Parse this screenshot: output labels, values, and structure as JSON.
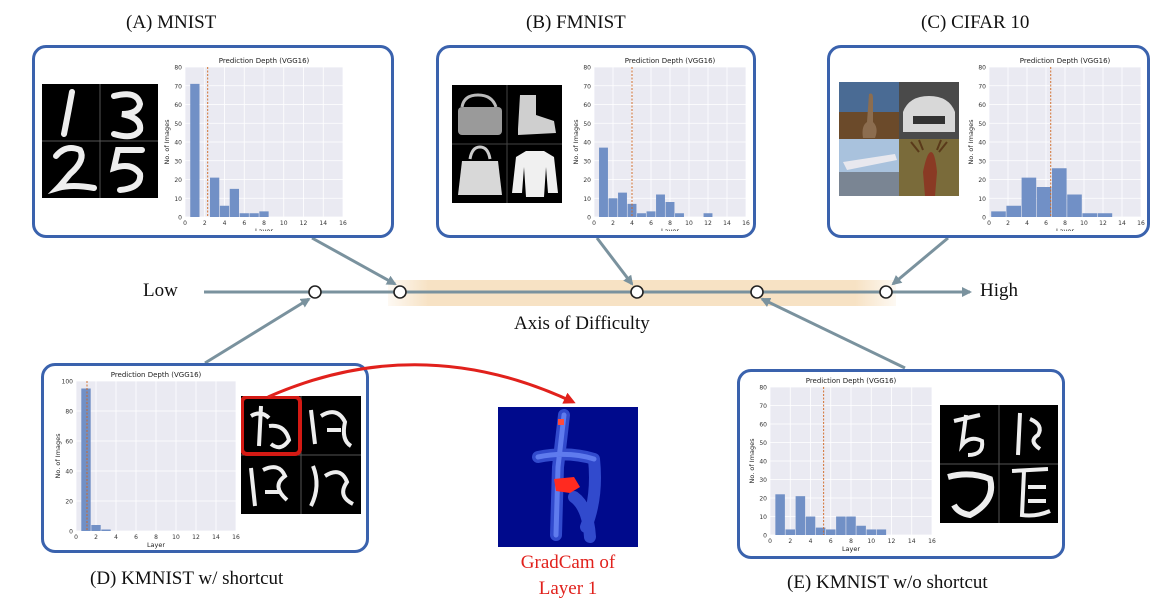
{
  "captions": {
    "a": "(A) MNIST",
    "b": "(B) FMNIST",
    "c": "(C) CIFAR 10",
    "d": "(D) KMNIST w/ shortcut",
    "e": "(E) KMNIST w/o shortcut"
  },
  "axis": {
    "low": "Low",
    "high": "High",
    "title": "Axis of Difficulty"
  },
  "gradcam": {
    "line1": "GradCam of",
    "line2": "Layer 1"
  },
  "colors": {
    "panel_border": "#3a62ad",
    "bar": "#7190c6",
    "axis_line": "#7a929e",
    "highlight": "#f7e2c4",
    "gradcam_text": "#e1211c"
  },
  "chart_data": [
    {
      "id": "mnist",
      "type": "bar",
      "title": "Prediction Depth (VGG16)",
      "xlabel": "Layer",
      "ylabel": "No. of Images",
      "xlim": [
        0,
        16
      ],
      "ylim": [
        0,
        80
      ],
      "xticks": [
        0,
        2,
        4,
        6,
        8,
        10,
        12,
        14,
        16
      ],
      "yticks": [
        0,
        10,
        20,
        30,
        40,
        50,
        60,
        70,
        80
      ],
      "x": [
        1,
        3,
        4,
        5,
        6,
        7,
        8
      ],
      "values": [
        71,
        21,
        6,
        15,
        2,
        2,
        3
      ],
      "mean_line": 2.3
    },
    {
      "id": "fmnist",
      "type": "bar",
      "title": "Prediction Depth (VGG16)",
      "xlabel": "Layer",
      "ylabel": "No. of Images",
      "xlim": [
        0,
        16
      ],
      "ylim": [
        0,
        80
      ],
      "xticks": [
        0,
        2,
        4,
        6,
        8,
        10,
        12,
        14,
        16
      ],
      "yticks": [
        0,
        10,
        20,
        30,
        40,
        50,
        60,
        70,
        80
      ],
      "x": [
        1,
        2,
        3,
        4,
        5,
        6,
        7,
        8,
        9,
        12
      ],
      "values": [
        37,
        10,
        13,
        7,
        2,
        3,
        12,
        8,
        2,
        2
      ],
      "mean_line": 4
    },
    {
      "id": "cifar10",
      "type": "bar",
      "title": "Prediction Depth (VGG16)",
      "xlabel": "Layer",
      "ylabel": "No. of Images",
      "xlim": [
        0,
        16
      ],
      "ylim": [
        0,
        80
      ],
      "xticks": [
        0,
        2,
        4,
        6,
        8,
        10,
        12,
        14,
        16
      ],
      "yticks": [
        0,
        10,
        20,
        30,
        40,
        50,
        60,
        70,
        80
      ],
      "x": [
        1,
        2,
        3,
        4,
        5,
        6,
        7,
        8,
        9,
        10
      ],
      "values": [
        3,
        6,
        21,
        16,
        26,
        12,
        2,
        2,
        0,
        0
      ],
      "bar_width": 1.6,
      "bar_x": [
        1,
        2.6,
        4.2,
        5.8,
        7.4,
        9,
        10.6,
        12.2
      ],
      "bar_values": [
        3,
        6,
        21,
        16,
        26,
        12,
        2,
        2
      ],
      "mean_line": 6.5
    },
    {
      "id": "kmnist_shortcut",
      "type": "bar",
      "title": "Prediction Depth (VGG16)",
      "xlabel": "Layer",
      "ylabel": "No. of Images",
      "xlim": [
        0,
        16
      ],
      "ylim": [
        0,
        100
      ],
      "xticks": [
        0,
        2,
        4,
        6,
        8,
        10,
        12,
        14,
        16
      ],
      "yticks": [
        0,
        20,
        40,
        60,
        80,
        100
      ],
      "x": [
        1,
        2,
        3
      ],
      "values": [
        95,
        4,
        1
      ],
      "mean_line": 1.1
    },
    {
      "id": "kmnist_no_shortcut",
      "type": "bar",
      "title": "Prediction Depth (VGG16)",
      "xlabel": "Layer",
      "ylabel": "No. of Images",
      "xlim": [
        0,
        16
      ],
      "ylim": [
        0,
        80
      ],
      "xticks": [
        0,
        2,
        4,
        6,
        8,
        10,
        12,
        14,
        16
      ],
      "yticks": [
        0,
        10,
        20,
        30,
        40,
        50,
        60,
        70,
        80
      ],
      "x": [
        1,
        2,
        3,
        4,
        5,
        6,
        7,
        8,
        9,
        10,
        11,
        12
      ],
      "values": [
        22,
        3,
        21,
        10,
        4,
        3,
        10,
        10,
        5,
        3,
        3,
        0
      ],
      "mean_line": 5.3
    }
  ]
}
